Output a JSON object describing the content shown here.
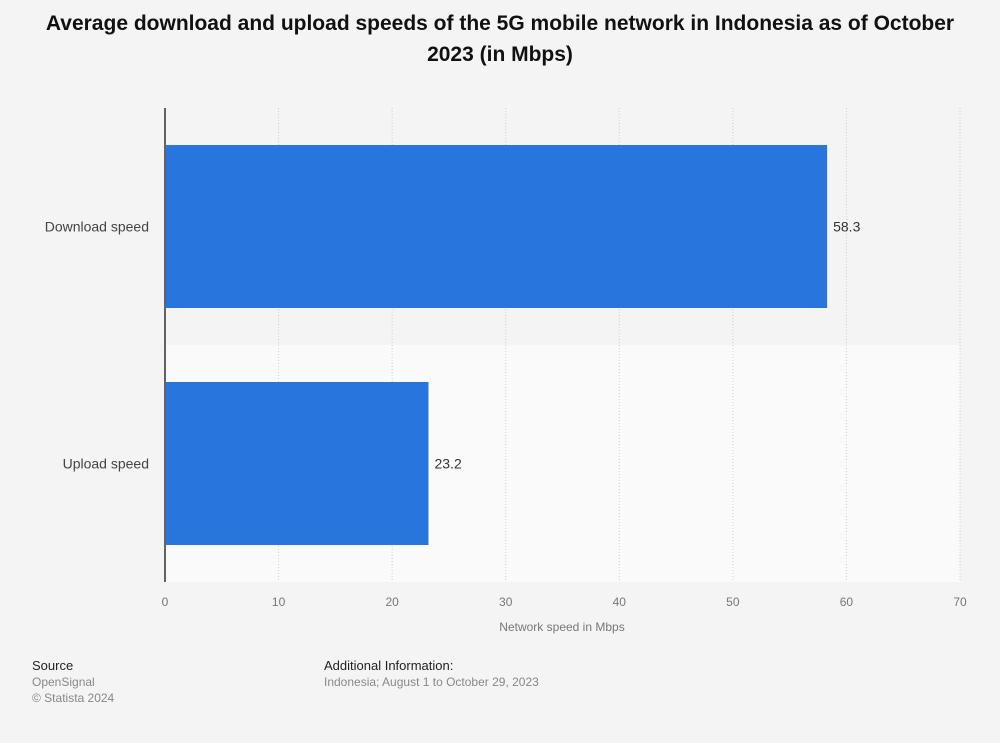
{
  "chart_data": {
    "type": "bar",
    "orientation": "horizontal",
    "title": "Average download and upload speeds of the 5G mobile network in Indonesia as of October 2023 (in Mbps)",
    "categories": [
      "Download speed",
      "Upload speed"
    ],
    "values": [
      58.3,
      23.2
    ],
    "value_labels": [
      "58.3",
      "23.2"
    ],
    "xlabel": "Network speed in Mbps",
    "ylabel": "",
    "xlim": [
      0,
      70
    ],
    "ticks": [
      0,
      10,
      20,
      30,
      40,
      50,
      60,
      70
    ],
    "grid": true,
    "bar_color": "#2876dd"
  },
  "footer": {
    "source_heading": "Source",
    "source_name": "OpenSignal",
    "copyright": "© Statista 2024",
    "info_heading": "Additional Information:",
    "info_text": "Indonesia; August 1 to October 29, 2023"
  }
}
